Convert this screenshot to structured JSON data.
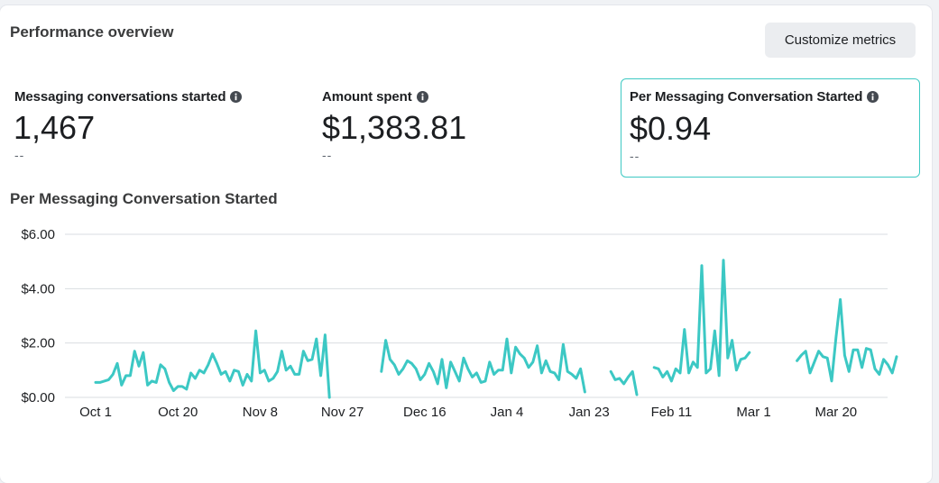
{
  "panel": {
    "title": "Performance overview",
    "customize_button": "Customize metrics"
  },
  "metrics": [
    {
      "label": "Messaging conversations started",
      "value": "1,467",
      "comparison": "--",
      "selected": false
    },
    {
      "label": "Amount spent",
      "value": "$1,383.81",
      "comparison": "--",
      "selected": false
    },
    {
      "label": "Per Messaging Conversation Started",
      "value": "$0.94",
      "comparison": "--",
      "selected": true
    }
  ],
  "colors": {
    "accent": "#3ec9c3",
    "line": "#3cc8c4",
    "gridline": "#dadde1"
  },
  "chart_data": {
    "type": "line",
    "title": "Per Messaging Conversation Started",
    "x_start": "Sep 27",
    "x_unit": "day",
    "x_tick_labels": [
      "Oct 1",
      "Oct 20",
      "Nov 8",
      "Nov 27",
      "Dec 16",
      "Jan 4",
      "Jan 23",
      "Feb 11",
      "Mar 1",
      "Mar 20"
    ],
    "y_tick_labels": [
      "$0.00",
      "$2.00",
      "$4.00",
      "$6.00"
    ],
    "ylim": [
      0,
      6
    ],
    "grid": true,
    "series": [
      {
        "values": [
          null,
          null,
          null,
          null,
          0.55,
          0.55,
          0.6,
          0.65,
          0.85,
          1.25,
          0.45,
          0.8,
          0.8,
          1.7,
          1.15,
          1.65,
          0.45,
          0.6,
          0.55,
          1.2,
          1.05,
          0.55,
          0.25,
          0.4,
          0.4,
          0.3,
          0.9,
          0.7,
          1.0,
          0.9,
          1.2,
          1.6,
          1.25,
          0.85,
          0.95,
          0.6,
          1.0,
          0.95,
          0.45,
          0.85,
          0.6,
          2.45,
          0.9,
          1.0,
          0.6,
          0.7,
          0.95,
          1.7,
          1.0,
          1.15,
          0.85,
          0.85,
          1.7,
          1.35,
          1.4,
          2.15,
          0.8,
          2.3,
          0.0,
          null,
          null,
          null,
          null,
          null,
          null,
          null,
          null,
          null,
          null,
          null,
          0.95,
          2.1,
          1.4,
          1.2,
          0.85,
          1.05,
          1.35,
          1.25,
          1.05,
          0.65,
          0.85,
          1.25,
          0.95,
          0.5,
          1.4,
          0.35,
          1.3,
          0.95,
          0.6,
          1.45,
          1.05,
          0.75,
          0.9,
          0.55,
          0.6,
          1.3,
          0.85,
          1.0,
          1.0,
          2.15,
          0.9,
          1.85,
          1.6,
          1.45,
          1.1,
          1.3,
          1.9,
          0.9,
          1.35,
          0.95,
          0.9,
          0.65,
          1.95,
          0.95,
          0.85,
          0.7,
          1.05,
          0.2,
          null,
          null,
          null,
          null,
          null,
          0.95,
          0.65,
          0.7,
          0.5,
          0.75,
          0.95,
          0.1,
          null,
          null,
          null,
          1.1,
          1.05,
          0.75,
          0.95,
          0.6,
          1.05,
          0.9,
          2.5,
          0.9,
          1.3,
          1.1,
          4.85,
          0.9,
          1.05,
          2.45,
          0.8,
          5.05,
          1.45,
          2.1,
          1.0,
          1.4,
          1.45,
          1.65,
          null,
          null,
          null,
          null,
          null,
          null,
          null,
          null,
          null,
          null,
          1.35,
          1.55,
          1.7,
          0.9,
          1.3,
          1.7,
          1.5,
          1.45,
          0.6,
          2.2,
          3.6,
          1.55,
          0.95,
          1.75,
          1.75,
          1.1,
          1.8,
          1.75,
          1.05,
          0.85,
          1.4,
          1.2,
          0.9,
          1.5
        ]
      }
    ]
  }
}
